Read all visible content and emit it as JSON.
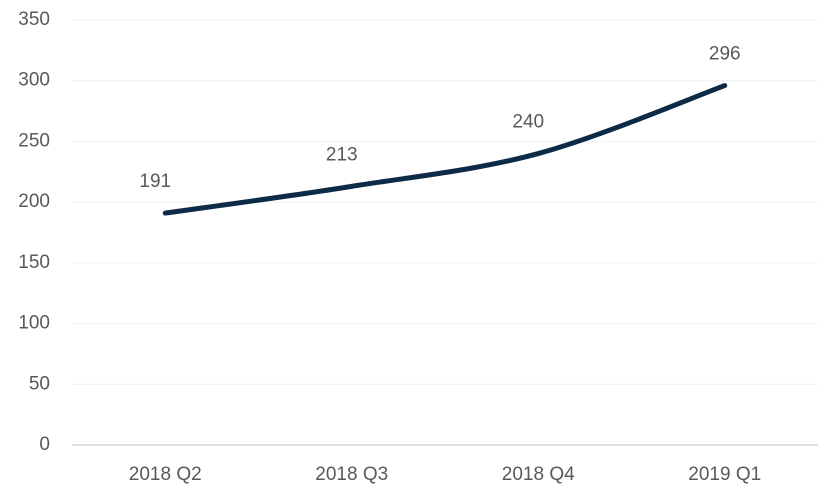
{
  "chart_data": {
    "type": "line",
    "categories": [
      "2018 Q2",
      "2018 Q3",
      "2018 Q4",
      "2019 Q1"
    ],
    "series": [
      {
        "color": "#0d2a47",
        "values": [
          191,
          213,
          240,
          296
        ]
      }
    ],
    "ylim": [
      0,
      350
    ],
    "yticks": [
      0,
      50,
      100,
      150,
      200,
      250,
      300,
      350
    ],
    "grid": true
  }
}
